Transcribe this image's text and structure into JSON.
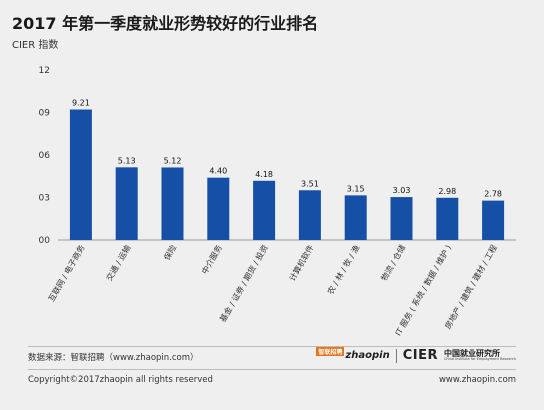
{
  "header": {
    "title": "2017 年第一季度就业形势较好的行业排名",
    "subtitle": "CIER 指数"
  },
  "chart_data": {
    "type": "bar",
    "title": "2017 年第一季度就业形势较好的行业排名",
    "ylabel": "CIER 指数",
    "xlabel": "",
    "ylim": [
      0,
      12
    ],
    "yticks": [
      "00",
      "03",
      "06",
      "09",
      "12"
    ],
    "ytick_values": [
      0,
      3,
      6,
      9,
      12
    ],
    "grid": false,
    "bar_color": "#1650a6",
    "categories": [
      "互联网 / 电子商务",
      "交通 / 运输",
      "保险",
      "中介服务",
      "基金 / 证券 / 期货 / 投资",
      "计算机软件",
      "农 / 林 / 牧 / 渔",
      "物流 / 仓储",
      "IT 服务 ( 系统 / 数据 / 维护 )",
      "房地产 / 建筑 / 建材 / 工程"
    ],
    "values": [
      9.21,
      5.13,
      5.12,
      4.4,
      4.18,
      3.51,
      3.15,
      3.03,
      2.98,
      2.78
    ],
    "value_labels": [
      "9.21",
      "5.13",
      "5.12",
      "4.40",
      "4.18",
      "3.51",
      "3.15",
      "3.03",
      "2.98",
      "2.78"
    ]
  },
  "footer": {
    "source": "数据来源：智联招聘（www.zhaopin.com）",
    "copyright": "Copyright©2017zhaopin all rights reserved",
    "site": "www.zhaopin.com",
    "logo_zhaopin": "zhaopin",
    "logo_zhaopin_badge": "智联招聘",
    "logo_cier": "CIER",
    "logo_cier_cn": "中国就业研究所",
    "logo_cier_en": "China Institute for Employment Research"
  }
}
